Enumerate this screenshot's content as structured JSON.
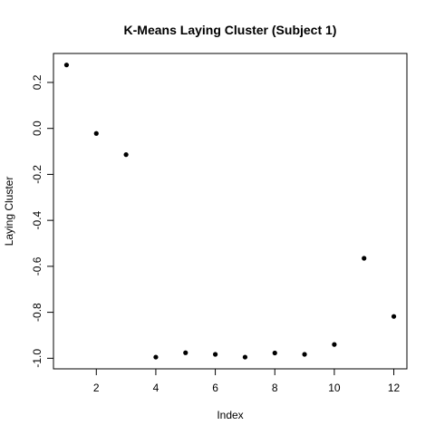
{
  "chart_data": {
    "type": "scatter",
    "title": "K-Means Laying Cluster (Subject 1)",
    "xlabel": "Index",
    "ylabel": "Laying Cluster",
    "xlim": [
      0.56,
      12.44
    ],
    "ylim": [
      -1.046,
      0.326
    ],
    "grid": false,
    "x_ticks": [
      2,
      4,
      6,
      8,
      10,
      12
    ],
    "y_ticks": [
      -1.0,
      -0.8,
      -0.6,
      -0.4,
      -0.2,
      0.0,
      0.2
    ],
    "x_tick_labels": [
      "2",
      "4",
      "6",
      "8",
      "10",
      "12"
    ],
    "y_tick_labels": [
      "-1.0",
      "-0.8",
      "-0.6",
      "-0.4",
      "-0.2",
      "0.0",
      "0.2"
    ],
    "series": [
      {
        "x": [
          1,
          2,
          3,
          4,
          5,
          6,
          7,
          8,
          9,
          10,
          11,
          12
        ],
        "y": [
          0.276,
          -0.022,
          -0.114,
          -0.995,
          -0.976,
          -0.983,
          -0.995,
          -0.977,
          -0.983,
          -0.94,
          -0.565,
          -0.818
        ]
      }
    ],
    "marker_color": "#000000"
  }
}
